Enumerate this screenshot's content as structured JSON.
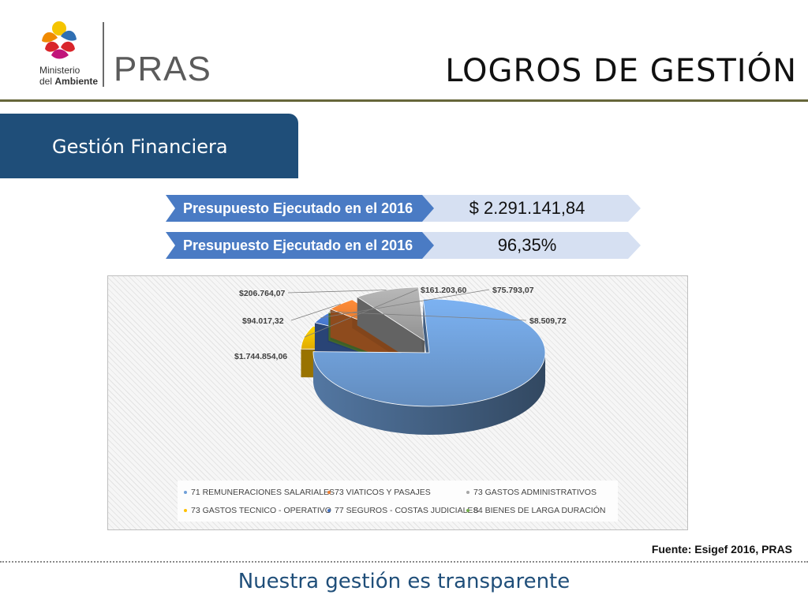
{
  "header": {
    "ministry_line1": "Ministerio",
    "ministry_line2_prefix": "del ",
    "ministry_line2_bold": "Ambiente",
    "program": "PRAS",
    "title": "LOGROS DE GESTIÓN"
  },
  "section": {
    "label": "Gestión Financiera"
  },
  "kpis": [
    {
      "label": "Presupuesto Ejecutado en el 2016",
      "value": "$ 2.291.141,84"
    },
    {
      "label": "Presupuesto Ejecutado en el 2016",
      "value": "96,35%"
    }
  ],
  "chart_data": {
    "type": "pie",
    "title": "",
    "legend_position": "bottom",
    "slices": [
      {
        "name": "71 REMUNERACIONES SALARIALES",
        "value": 1744854.06,
        "label": "$1.744.854,06",
        "color": "#6f9fd8"
      },
      {
        "name": "73 GASTOS TECNICO - OPERATIVO",
        "value": 161203.6,
        "label": "$161.203,60",
        "color": "#ffc000"
      },
      {
        "name": "77 SEGUROS - COSTAS JUDICIALES",
        "value": 75793.07,
        "label": "$75.793,07",
        "color": "#4472c4"
      },
      {
        "name": "84 BIENES DE LARGA DURACIÓN",
        "value": 8509.72,
        "label": "$8.509,72",
        "color": "#70ad47"
      },
      {
        "name": "73 VIATICOS Y PASAJES",
        "value": 94017.32,
        "label": "$94.017,32",
        "color": "#ed7d31"
      },
      {
        "name": "73 GASTOS ADMINISTRATIVOS",
        "value": 206764.07,
        "label": "$206.764,07",
        "color": "#a5a5a5"
      }
    ],
    "legend": [
      {
        "label": "71 REMUNERACIONES SALARIALES",
        "color": "#6f9fd8"
      },
      {
        "label": "73 VIATICOS Y PASAJES",
        "color": "#ed7d31"
      },
      {
        "label": "73 GASTOS ADMINISTRATIVOS",
        "color": "#a5a5a5"
      },
      {
        "label": "73 GASTOS TECNICO - OPERATIVO",
        "color": "#ffc000"
      },
      {
        "label": "77 SEGUROS - COSTAS JUDICIALES",
        "color": "#4472c4"
      },
      {
        "label": "84 BIENES DE LARGA DURACIÓN",
        "color": "#70ad47"
      }
    ]
  },
  "footer": {
    "source": "Fuente: Esigef 2016, PRAS",
    "motto": "Nuestra gestión es transparente"
  },
  "colors": {
    "brand_blue": "#1f4e79",
    "kpi_blue": "#4a7bc4",
    "kpi_light": "#d6e0f2",
    "rule_olive": "#66663a"
  }
}
